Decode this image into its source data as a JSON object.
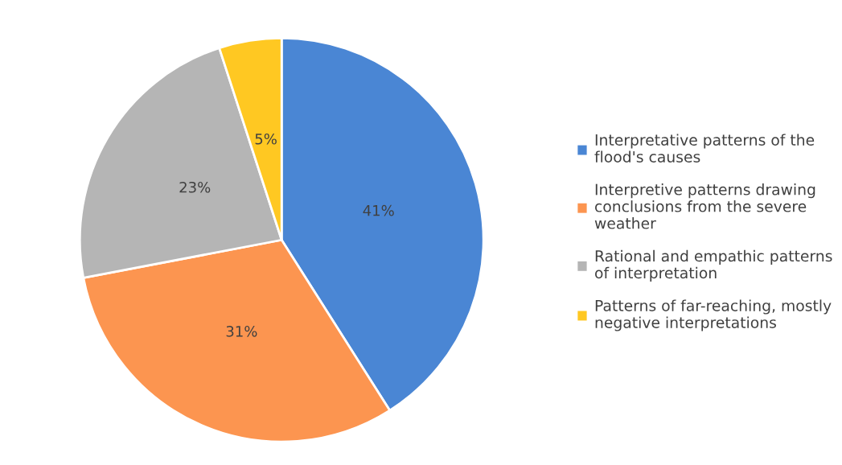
{
  "chart_data": {
    "type": "pie",
    "categories": [
      "Interpretative patterns of the\nflood's causes",
      "Interpretive patterns drawing\nconclusions from the severe\nweather",
      "Rational and empathic patterns\nof interpretation",
      "Patterns of far-reaching, mostly\nnegative interpretations"
    ],
    "values": [
      41,
      31,
      23,
      5
    ],
    "colors": [
      "#4a86d4",
      "#fc9550",
      "#b5b5b5",
      "#ffc822"
    ],
    "value_labels": [
      "41%",
      "31%",
      "23%",
      "5%"
    ],
    "legend": "right"
  }
}
